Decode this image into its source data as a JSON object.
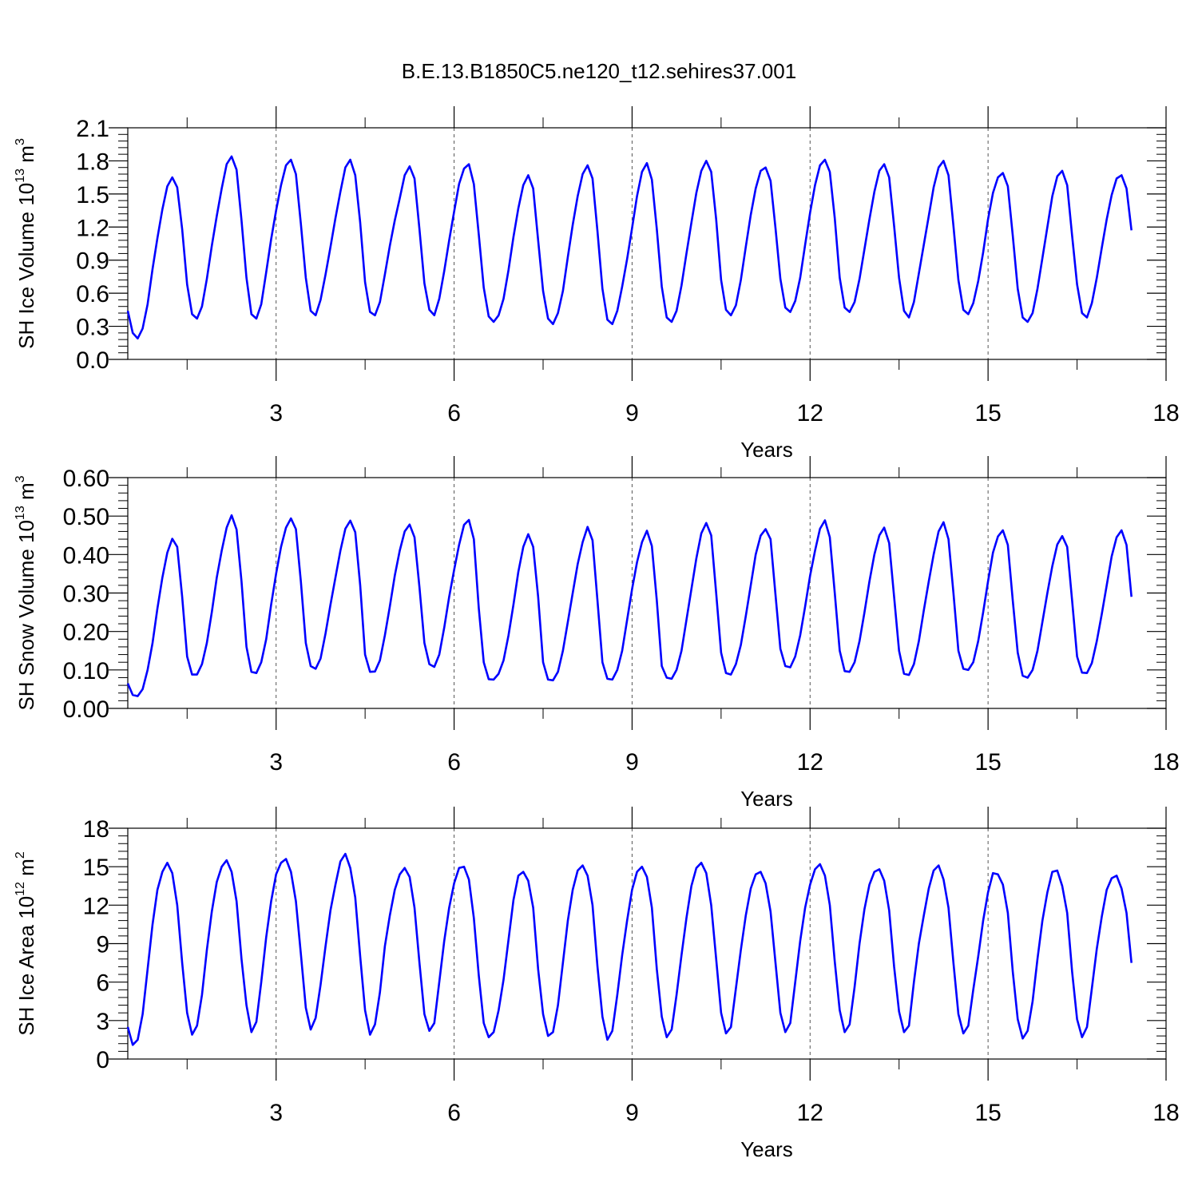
{
  "title": "B.E.13.B1850C5.ne120_t12.sehires37.001",
  "colors": {
    "series": "#0000ff",
    "axes": "#000000",
    "grid": "#000000"
  },
  "chart_data": [
    {
      "type": "line",
      "ylabel_main": "SH Ice Volume 10",
      "ylabel_exp": "13",
      "ylabel_unit": "m",
      "ylabel_unit_exp": "3",
      "xlabel": "Years",
      "xlim": [
        0.5,
        18
      ],
      "ylim": [
        0,
        2.1
      ],
      "xticks": [
        3,
        6,
        9,
        12,
        15,
        18
      ],
      "xtick_labels": [
        "3",
        "6",
        "9",
        "12",
        "15",
        "18"
      ],
      "yticks": [
        0,
        0.3,
        0.6,
        0.9,
        1.2,
        1.5,
        1.8,
        2.1
      ],
      "ytick_labels": [
        "0.0",
        "0.3",
        "0.6",
        "0.9",
        "1.2",
        "1.5",
        "1.8",
        "2.1"
      ],
      "vgrid_dashed": [
        3,
        6,
        9,
        12,
        15
      ],
      "x_start": 0.5,
      "x_step": 0.0833333,
      "values": [
        0.44,
        0.24,
        0.19,
        0.28,
        0.5,
        0.82,
        1.1,
        1.36,
        1.57,
        1.65,
        1.56,
        1.18,
        0.68,
        0.41,
        0.37,
        0.48,
        0.73,
        1.03,
        1.3,
        1.55,
        1.77,
        1.84,
        1.72,
        1.26,
        0.74,
        0.41,
        0.37,
        0.5,
        0.79,
        1.09,
        1.35,
        1.58,
        1.76,
        1.81,
        1.68,
        1.23,
        0.74,
        0.44,
        0.4,
        0.54,
        0.77,
        1.02,
        1.28,
        1.52,
        1.74,
        1.81,
        1.67,
        1.24,
        0.7,
        0.43,
        0.4,
        0.52,
        0.77,
        1.03,
        1.26,
        1.46,
        1.67,
        1.75,
        1.64,
        1.18,
        0.69,
        0.45,
        0.4,
        0.55,
        0.8,
        1.08,
        1.34,
        1.59,
        1.73,
        1.77,
        1.59,
        1.13,
        0.65,
        0.39,
        0.34,
        0.4,
        0.55,
        0.81,
        1.11,
        1.37,
        1.58,
        1.67,
        1.55,
        1.08,
        0.62,
        0.37,
        0.32,
        0.42,
        0.62,
        0.93,
        1.22,
        1.48,
        1.68,
        1.76,
        1.64,
        1.16,
        0.64,
        0.36,
        0.32,
        0.44,
        0.66,
        0.91,
        1.19,
        1.48,
        1.7,
        1.78,
        1.63,
        1.18,
        0.66,
        0.38,
        0.34,
        0.44,
        0.67,
        0.96,
        1.24,
        1.51,
        1.71,
        1.8,
        1.7,
        1.27,
        0.72,
        0.45,
        0.4,
        0.49,
        0.72,
        1.02,
        1.31,
        1.55,
        1.71,
        1.74,
        1.62,
        1.19,
        0.73,
        0.47,
        0.43,
        0.53,
        0.74,
        1.04,
        1.33,
        1.58,
        1.76,
        1.81,
        1.7,
        1.28,
        0.74,
        0.47,
        0.43,
        0.52,
        0.73,
        1.0,
        1.27,
        1.52,
        1.71,
        1.77,
        1.65,
        1.21,
        0.74,
        0.44,
        0.38,
        0.52,
        0.78,
        1.04,
        1.3,
        1.56,
        1.74,
        1.8,
        1.67,
        1.21,
        0.72,
        0.45,
        0.41,
        0.51,
        0.71,
        0.97,
        1.27,
        1.51,
        1.65,
        1.69,
        1.57,
        1.12,
        0.64,
        0.38,
        0.34,
        0.42,
        0.64,
        0.92,
        1.2,
        1.48,
        1.66,
        1.71,
        1.58,
        1.12,
        0.68,
        0.42,
        0.38,
        0.51,
        0.74,
        1.01,
        1.27,
        1.49,
        1.64,
        1.67,
        1.55,
        1.17
      ]
    },
    {
      "type": "line",
      "ylabel_main": "SH Snow Volume 10",
      "ylabel_exp": "13",
      "ylabel_unit": "m",
      "ylabel_unit_exp": "3",
      "xlabel": "Years",
      "xlim": [
        0.5,
        18
      ],
      "ylim": [
        0,
        0.6
      ],
      "xticks": [
        3,
        6,
        9,
        12,
        15,
        18
      ],
      "xtick_labels": [
        "3",
        "6",
        "9",
        "12",
        "15",
        "18"
      ],
      "yticks": [
        0,
        0.1,
        0.2,
        0.3,
        0.4,
        0.5,
        0.6
      ],
      "ytick_labels": [
        "0.00",
        "0.10",
        "0.20",
        "0.30",
        "0.40",
        "0.50",
        "0.60"
      ],
      "vgrid_dashed": [
        3,
        6,
        9,
        12,
        15
      ],
      "x_start": 0.5,
      "x_step": 0.0833333,
      "values": [
        0.065,
        0.035,
        0.032,
        0.05,
        0.1,
        0.17,
        0.26,
        0.34,
        0.405,
        0.441,
        0.42,
        0.29,
        0.135,
        0.088,
        0.088,
        0.115,
        0.17,
        0.25,
        0.34,
        0.41,
        0.47,
        0.502,
        0.465,
        0.33,
        0.16,
        0.095,
        0.092,
        0.12,
        0.18,
        0.27,
        0.35,
        0.42,
        0.47,
        0.494,
        0.466,
        0.33,
        0.17,
        0.11,
        0.103,
        0.13,
        0.195,
        0.27,
        0.34,
        0.41,
        0.467,
        0.488,
        0.458,
        0.32,
        0.14,
        0.095,
        0.096,
        0.125,
        0.19,
        0.265,
        0.345,
        0.41,
        0.46,
        0.478,
        0.445,
        0.315,
        0.17,
        0.115,
        0.108,
        0.14,
        0.21,
        0.29,
        0.36,
        0.425,
        0.477,
        0.49,
        0.44,
        0.26,
        0.12,
        0.076,
        0.075,
        0.09,
        0.125,
        0.19,
        0.27,
        0.355,
        0.42,
        0.453,
        0.42,
        0.29,
        0.12,
        0.075,
        0.073,
        0.095,
        0.15,
        0.225,
        0.3,
        0.375,
        0.432,
        0.472,
        0.437,
        0.28,
        0.12,
        0.077,
        0.075,
        0.1,
        0.15,
        0.23,
        0.31,
        0.38,
        0.432,
        0.462,
        0.422,
        0.28,
        0.11,
        0.08,
        0.077,
        0.1,
        0.15,
        0.23,
        0.31,
        0.39,
        0.455,
        0.482,
        0.45,
        0.3,
        0.145,
        0.092,
        0.088,
        0.115,
        0.165,
        0.24,
        0.32,
        0.4,
        0.449,
        0.466,
        0.44,
        0.295,
        0.155,
        0.11,
        0.107,
        0.135,
        0.19,
        0.265,
        0.345,
        0.41,
        0.467,
        0.489,
        0.445,
        0.3,
        0.15,
        0.097,
        0.095,
        0.12,
        0.175,
        0.25,
        0.33,
        0.4,
        0.45,
        0.47,
        0.43,
        0.29,
        0.15,
        0.09,
        0.087,
        0.115,
        0.175,
        0.255,
        0.33,
        0.4,
        0.46,
        0.484,
        0.44,
        0.3,
        0.15,
        0.103,
        0.1,
        0.12,
        0.175,
        0.25,
        0.33,
        0.405,
        0.447,
        0.463,
        0.425,
        0.28,
        0.145,
        0.085,
        0.08,
        0.1,
        0.15,
        0.225,
        0.3,
        0.37,
        0.426,
        0.448,
        0.42,
        0.28,
        0.135,
        0.093,
        0.092,
        0.118,
        0.175,
        0.245,
        0.32,
        0.395,
        0.445,
        0.463,
        0.425,
        0.29
      ]
    },
    {
      "type": "line",
      "ylabel_main": "SH Ice Area 10",
      "ylabel_exp": "12",
      "ylabel_unit": "m",
      "ylabel_unit_exp": "2",
      "xlabel": "Years",
      "xlim": [
        0.5,
        18
      ],
      "ylim": [
        0,
        18
      ],
      "xticks": [
        3,
        6,
        9,
        12,
        15,
        18
      ],
      "xtick_labels": [
        "3",
        "6",
        "9",
        "12",
        "15",
        "18"
      ],
      "yticks": [
        0,
        3,
        6,
        9,
        12,
        15,
        18
      ],
      "ytick_labels": [
        "0",
        "3",
        "6",
        "9",
        "12",
        "15",
        "18"
      ],
      "vgrid_dashed": [
        3,
        6,
        9,
        12,
        15
      ],
      "x_start": 0.5,
      "x_step": 0.0833333,
      "values": [
        2.5,
        1.1,
        1.5,
        3.5,
        7.0,
        10.5,
        13.2,
        14.6,
        15.3,
        14.5,
        12.0,
        7.5,
        3.6,
        1.9,
        2.6,
        5.0,
        8.5,
        11.5,
        13.8,
        15.0,
        15.5,
        14.6,
        12.3,
        7.8,
        4.2,
        2.1,
        2.9,
        6.0,
        9.5,
        12.3,
        14.4,
        15.3,
        15.6,
        14.6,
        12.3,
        8.2,
        4.0,
        2.3,
        3.2,
        5.8,
        8.8,
        11.6,
        13.6,
        15.4,
        16.0,
        14.9,
        12.6,
        8.0,
        3.8,
        1.9,
        2.7,
        5.2,
        8.8,
        11.2,
        13.2,
        14.4,
        14.9,
        14.2,
        11.8,
        7.5,
        3.5,
        2.2,
        2.8,
        6.0,
        9.2,
        11.8,
        13.7,
        14.9,
        15.0,
        14.0,
        11.0,
        6.5,
        2.8,
        1.7,
        2.1,
        3.8,
        6.2,
        9.3,
        12.4,
        14.3,
        14.6,
        13.9,
        11.8,
        7.0,
        3.5,
        1.8,
        2.1,
        4.2,
        7.5,
        10.8,
        13.2,
        14.7,
        15.1,
        14.3,
        12.0,
        7.2,
        3.3,
        1.5,
        2.2,
        5.0,
        8.1,
        10.8,
        13.2,
        14.6,
        15.0,
        14.2,
        11.8,
        7.0,
        3.3,
        1.7,
        2.3,
        5.0,
        8.1,
        11.0,
        13.5,
        14.9,
        15.3,
        14.5,
        12.0,
        7.8,
        3.6,
        2.0,
        2.5,
        5.5,
        8.5,
        11.2,
        13.3,
        14.4,
        14.6,
        13.7,
        11.5,
        7.5,
        3.6,
        2.1,
        2.8,
        6.0,
        9.2,
        11.8,
        13.6,
        14.8,
        15.2,
        14.3,
        12.0,
        7.6,
        3.8,
        2.1,
        2.7,
        5.6,
        9.0,
        11.7,
        13.6,
        14.6,
        14.8,
        13.9,
        11.6,
        7.2,
        3.7,
        2.1,
        2.6,
        6.0,
        9.0,
        11.2,
        13.3,
        14.7,
        15.1,
        14.0,
        11.8,
        7.5,
        3.5,
        2.0,
        2.6,
        5.4,
        8.0,
        10.8,
        13.0,
        14.5,
        14.4,
        13.6,
        11.4,
        6.8,
        3.1,
        1.6,
        2.2,
        4.5,
        7.8,
        10.8,
        13.0,
        14.6,
        14.7,
        13.5,
        11.4,
        6.8,
        3.1,
        1.7,
        2.5,
        5.5,
        8.6,
        11.1,
        13.2,
        14.1,
        14.3,
        13.3,
        11.4,
        7.5
      ]
    }
  ]
}
